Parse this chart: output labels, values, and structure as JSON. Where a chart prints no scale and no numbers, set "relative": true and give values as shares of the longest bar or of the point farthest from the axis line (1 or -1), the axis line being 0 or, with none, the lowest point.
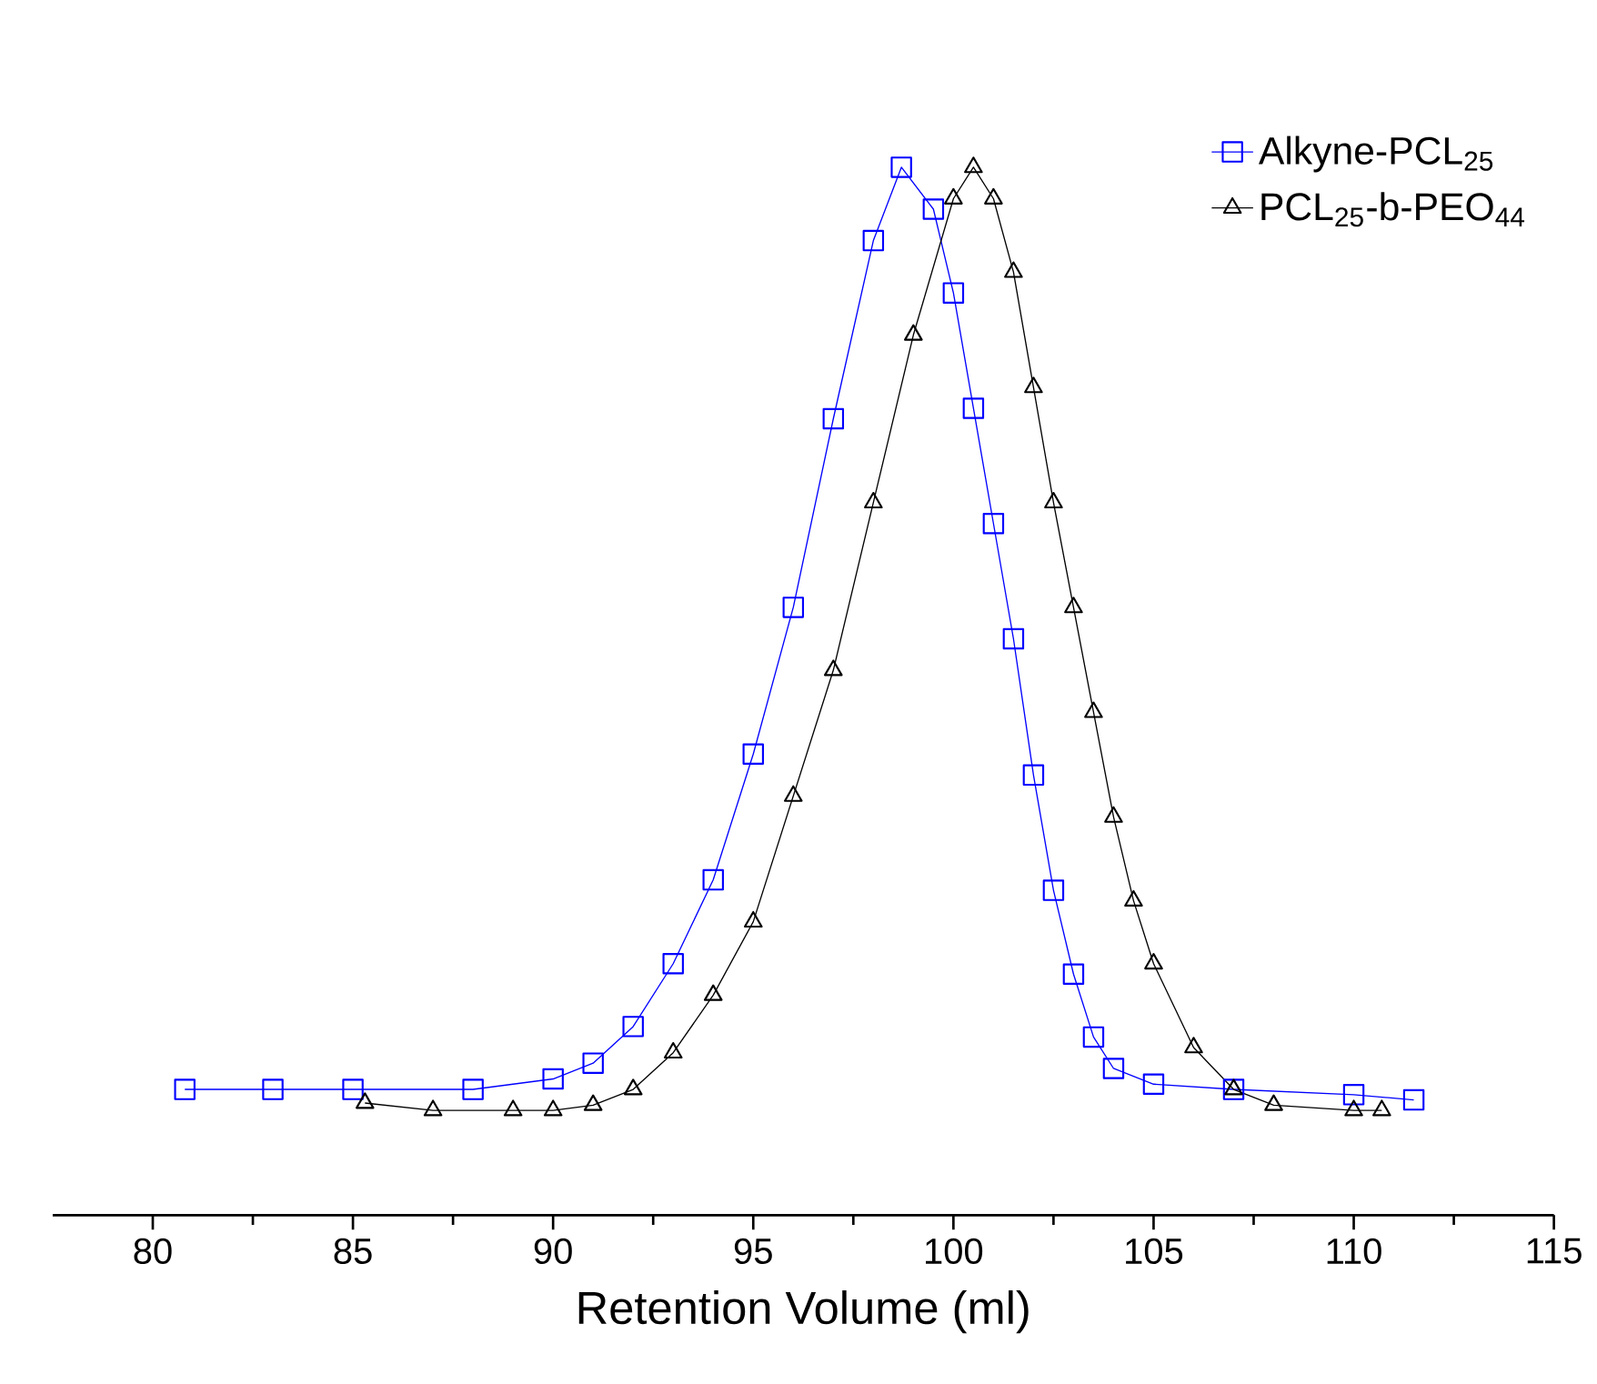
{
  "chart_data": {
    "type": "line",
    "xlabel": "Retention Volume (ml)",
    "relative": true,
    "xlim": [
      77.5,
      115
    ],
    "xticks": [
      80,
      85,
      90,
      95,
      100,
      105,
      110,
      115
    ],
    "legend": "top right",
    "series": [
      {
        "name": "Alkyne-PCL$_{25}$",
        "color": "#0000ff",
        "marker": "square",
        "x": [
          80.8,
          83,
          85,
          88,
          90,
          91,
          92,
          93,
          94,
          95,
          96,
          97,
          98,
          98.7,
          99.5,
          100,
          100.5,
          101,
          101.5,
          102,
          102.5,
          103,
          103.5,
          104,
          105,
          107,
          110,
          111.5
        ],
        "values": [
          0.12,
          0.12,
          0.12,
          0.12,
          0.13,
          0.145,
          0.18,
          0.24,
          0.32,
          0.44,
          0.58,
          0.76,
          0.93,
          1.0,
          0.96,
          0.88,
          0.77,
          0.66,
          0.55,
          0.42,
          0.31,
          0.23,
          0.17,
          0.14,
          0.125,
          0.12,
          0.115,
          0.11
        ]
      },
      {
        "name": "PCL$_{25}$-b-PEO$_{44}$",
        "color": "#000000",
        "marker": "triangle",
        "x": [
          85.3,
          87,
          89,
          90,
          91,
          92,
          93,
          94,
          95,
          96,
          97,
          98,
          99,
          100,
          100.5,
          101,
          101.5,
          102,
          102.5,
          103,
          103.5,
          104,
          104.5,
          105,
          106,
          107,
          108,
          110,
          110.7
        ],
        "values": [
          0.107,
          0.1,
          0.1,
          0.1,
          0.105,
          0.12,
          0.155,
          0.21,
          0.28,
          0.4,
          0.52,
          0.68,
          0.84,
          0.97,
          1.0,
          0.97,
          0.9,
          0.79,
          0.68,
          0.58,
          0.48,
          0.38,
          0.3,
          0.24,
          0.16,
          0.12,
          0.105,
          0.1,
          0.1
        ]
      }
    ]
  }
}
